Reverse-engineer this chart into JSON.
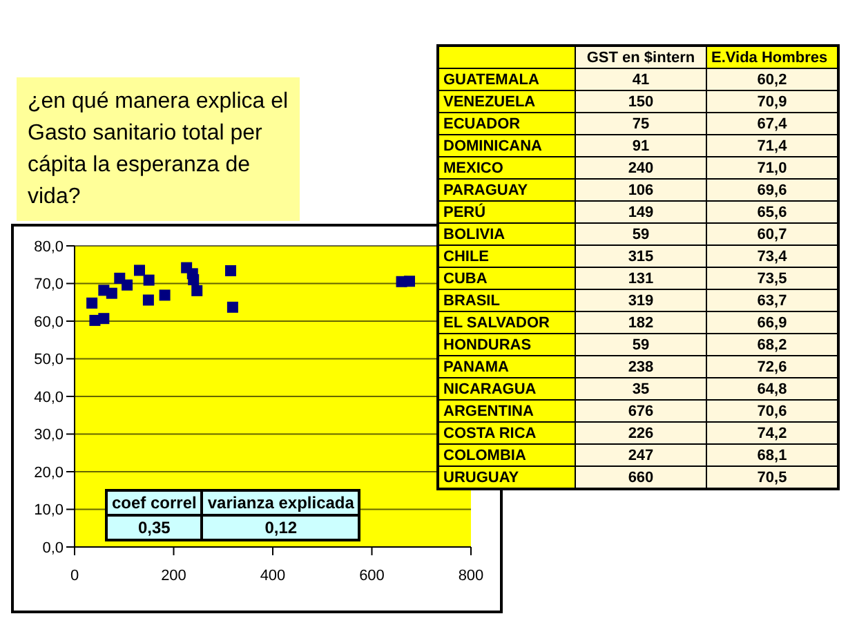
{
  "chart_data": [
    {
      "type": "scatter",
      "title": "¿en qué manera explica el Gasto sanitario total per cápita la esperanza de vida?",
      "x": [
        41,
        150,
        75,
        91,
        240,
        106,
        149,
        59,
        315,
        131,
        319,
        182,
        59,
        238,
        35,
        676,
        226,
        247,
        660
      ],
      "series": [
        {
          "color": "#000080",
          "values": [
            60.2,
            70.9,
            67.4,
            71.4,
            71.0,
            69.6,
            65.6,
            60.7,
            73.4,
            73.5,
            63.7,
            66.9,
            68.2,
            72.6,
            64.8,
            70.6,
            74.2,
            68.1,
            70.5
          ]
        }
      ],
      "marker": "square",
      "grid": "y",
      "legend": false,
      "xlim": [
        0,
        800
      ],
      "xticks": [
        0,
        200,
        400,
        600,
        800
      ],
      "ylim": [
        0,
        80
      ],
      "yticks": [
        {
          "value": 0,
          "label": "0,0"
        },
        {
          "value": 10,
          "label": "10,0"
        },
        {
          "value": 20,
          "label": "20,0"
        },
        {
          "value": 30,
          "label": "30,0"
        },
        {
          "value": 40,
          "label": "40,0"
        },
        {
          "value": 50,
          "label": "50,0"
        },
        {
          "value": 60,
          "label": "60,0"
        },
        {
          "value": 70,
          "label": "70,0"
        },
        {
          "value": 80,
          "label": "80,0"
        }
      ],
      "annotations": [
        "coef correl",
        "varianza explicada",
        "0,35",
        "0,12"
      ]
    },
    {
      "type": "other",
      "data_labels": true,
      "categories": [
        "GUATEMALA",
        "VENEZUELA",
        "ECUADOR",
        "DOMINICANA",
        "MEXICO",
        "PARAGUAY",
        "PERÚ",
        "BOLIVIA",
        "CHILE",
        "CUBA",
        "BRASIL",
        "EL SALVADOR",
        "HONDURAS",
        "PANAMA",
        "NICARAGUA",
        "ARGENTINA",
        "COSTA RICA",
        "COLOMBIA",
        "URUGUAY"
      ],
      "series": [
        {
          "name": "GST en $intern",
          "values": [
            41,
            150,
            75,
            91,
            240,
            106,
            149,
            59,
            315,
            131,
            319,
            182,
            59,
            238,
            35,
            676,
            226,
            247,
            660
          ]
        },
        {
          "name": "E.Vida Hombres",
          "values": [
            60.2,
            70.9,
            67.4,
            71.4,
            71.0,
            69.6,
            65.6,
            60.7,
            73.4,
            73.5,
            63.7,
            66.9,
            68.2,
            72.6,
            64.8,
            70.6,
            74.2,
            68.1,
            70.5
          ],
          "value_labels": [
            "60,2",
            "70,9",
            "67,4",
            "71,4",
            "71,0",
            "69,6",
            "65,6",
            "60,7",
            "73,4",
            "73,5",
            "63,7",
            "66,9",
            "68,2",
            "72,6",
            "64,8",
            "70,6",
            "74,2",
            "68,1",
            "70,5"
          ]
        }
      ]
    }
  ]
}
